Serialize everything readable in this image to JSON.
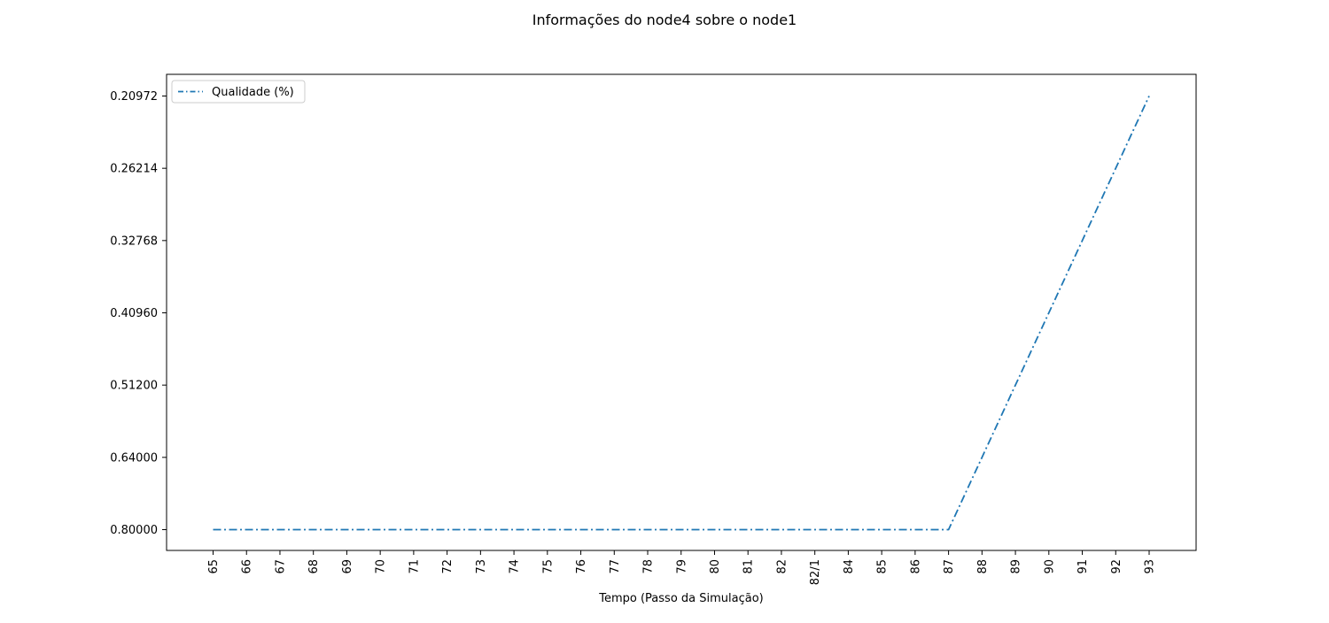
{
  "chart_data": {
    "type": "line",
    "title": "Informações do node4 sobre o node1",
    "xlabel": "Tempo (Passo da Simulação)",
    "ylabel": "",
    "x_tick_labels": [
      "65",
      "66",
      "67",
      "68",
      "69",
      "70",
      "71",
      "72",
      "73",
      "74",
      "75",
      "76",
      "77",
      "78",
      "79",
      "80",
      "81",
      "82",
      "82/1",
      "84",
      "85",
      "86",
      "87",
      "88",
      "89",
      "90",
      "91",
      "92",
      "93"
    ],
    "y_tick_labels": [
      "0.80000",
      "0.64000",
      "0.51200",
      "0.40960",
      "0.32768",
      "0.26214",
      "0.20972"
    ],
    "series": [
      {
        "name": "Qualidade (%)",
        "color": "#1f77b4",
        "line_style": "dash-dot",
        "values": [
          0.8,
          0.8,
          0.8,
          0.8,
          0.8,
          0.8,
          0.8,
          0.8,
          0.8,
          0.8,
          0.8,
          0.8,
          0.8,
          0.8,
          0.8,
          0.8,
          0.8,
          0.8,
          0.8,
          0.8,
          0.8,
          0.8,
          0.8,
          0.64,
          0.512,
          0.4096,
          0.32768,
          0.26214,
          0.20972
        ]
      }
    ],
    "grid": false,
    "legend_position": "top-left"
  }
}
